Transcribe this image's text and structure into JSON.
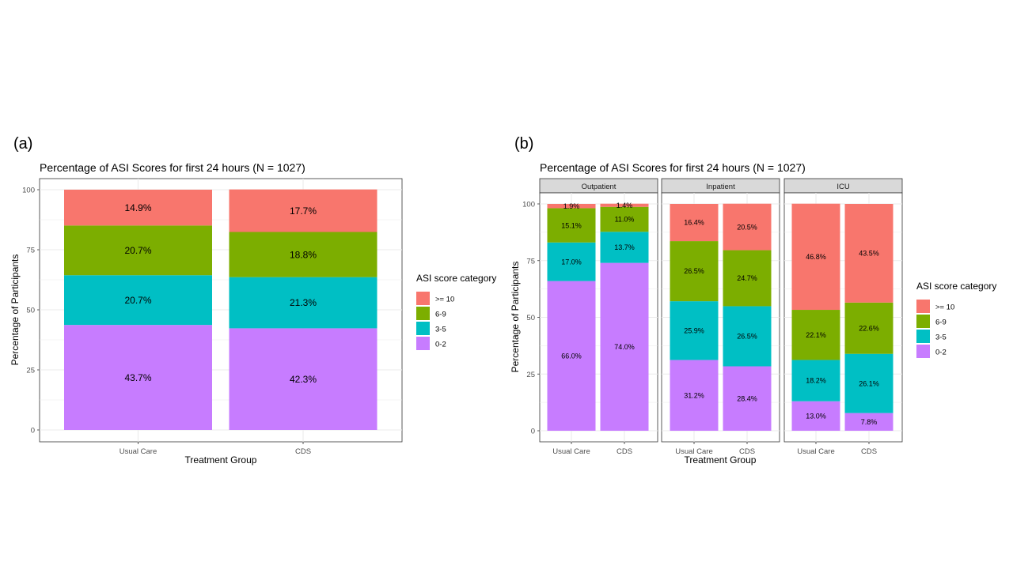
{
  "panel_a_label": "(a)",
  "panel_b_label": "(b)",
  "legend_title": "ASI score category",
  "colors": {
    ">= 10": "#F8766D",
    "6-9": "#7CAE00",
    "3-5": "#00BFC4",
    "0-2": "#C77CFF",
    "grid": "#ebebeb",
    "strip": "#d9d9d9",
    "axis_text": "#4d4d4d"
  },
  "chart_data": [
    {
      "type": "bar",
      "stacked": true,
      "title": "Percentage of ASI Scores for first 24 hours (N = 1027)",
      "xlabel": "Treatment Group",
      "ylabel": "Percentage of Participants",
      "ylim": [
        0,
        100
      ],
      "yticks": [
        0,
        25,
        50,
        75,
        100
      ],
      "grid": true,
      "legend_position": "right",
      "categories": [
        "Usual Care",
        "CDS"
      ],
      "series": [
        {
          "name": "0-2",
          "values": [
            43.7,
            42.3
          ],
          "labels": [
            "43.7%",
            "42.3%"
          ]
        },
        {
          "name": "3-5",
          "values": [
            20.7,
            21.3
          ],
          "labels": [
            "20.7%",
            "21.3%"
          ]
        },
        {
          "name": "6-9",
          "values": [
            20.7,
            18.8
          ],
          "labels": [
            "20.7%",
            "18.8%"
          ]
        },
        {
          "name": ">= 10",
          "values": [
            14.9,
            17.7
          ],
          "labels": [
            "14.9%",
            "17.7%"
          ]
        }
      ],
      "legend_order": [
        ">= 10",
        "6-9",
        "3-5",
        "0-2"
      ]
    },
    {
      "type": "bar",
      "stacked": true,
      "faceted": true,
      "title": "Percentage of ASI Scores for first 24 hours (N = 1027)",
      "xlabel": "Treatment Group",
      "ylabel": "Percentage of Participants",
      "ylim": [
        0,
        100
      ],
      "yticks": [
        0,
        25,
        50,
        75,
        100
      ],
      "grid": true,
      "legend_position": "right",
      "categories": [
        "Usual Care",
        "CDS"
      ],
      "legend_order": [
        ">= 10",
        "6-9",
        "3-5",
        "0-2"
      ],
      "facets": [
        {
          "name": "Outpatient",
          "series": [
            {
              "name": "0-2",
              "values": [
                66.0,
                74.0
              ],
              "labels": [
                "66.0%",
                "74.0%"
              ]
            },
            {
              "name": "3-5",
              "values": [
                17.0,
                13.7
              ],
              "labels": [
                "17.0%",
                "13.7%"
              ]
            },
            {
              "name": "6-9",
              "values": [
                15.1,
                11.0
              ],
              "labels": [
                "15.1%",
                "11.0%"
              ]
            },
            {
              "name": ">= 10",
              "values": [
                1.9,
                1.4
              ],
              "labels": [
                "1.9%",
                "1.4%"
              ]
            }
          ]
        },
        {
          "name": "Inpatient",
          "series": [
            {
              "name": "0-2",
              "values": [
                31.2,
                28.4
              ],
              "labels": [
                "31.2%",
                "28.4%"
              ]
            },
            {
              "name": "3-5",
              "values": [
                25.9,
                26.5
              ],
              "labels": [
                "25.9%",
                "26.5%"
              ]
            },
            {
              "name": "6-9",
              "values": [
                26.5,
                24.7
              ],
              "labels": [
                "26.5%",
                "24.7%"
              ]
            },
            {
              "name": ">= 10",
              "values": [
                16.4,
                20.5
              ],
              "labels": [
                "16.4%",
                "20.5%"
              ]
            }
          ]
        },
        {
          "name": "ICU",
          "series": [
            {
              "name": "0-2",
              "values": [
                13.0,
                7.8
              ],
              "labels": [
                "13.0%",
                "7.8%"
              ]
            },
            {
              "name": "3-5",
              "values": [
                18.2,
                26.1
              ],
              "labels": [
                "18.2%",
                "26.1%"
              ]
            },
            {
              "name": "6-9",
              "values": [
                22.1,
                22.6
              ],
              "labels": [
                "22.1%",
                "22.6%"
              ]
            },
            {
              "name": ">= 10",
              "values": [
                46.8,
                43.5
              ],
              "labels": [
                "46.8%",
                "43.5%"
              ]
            }
          ]
        }
      ]
    }
  ]
}
